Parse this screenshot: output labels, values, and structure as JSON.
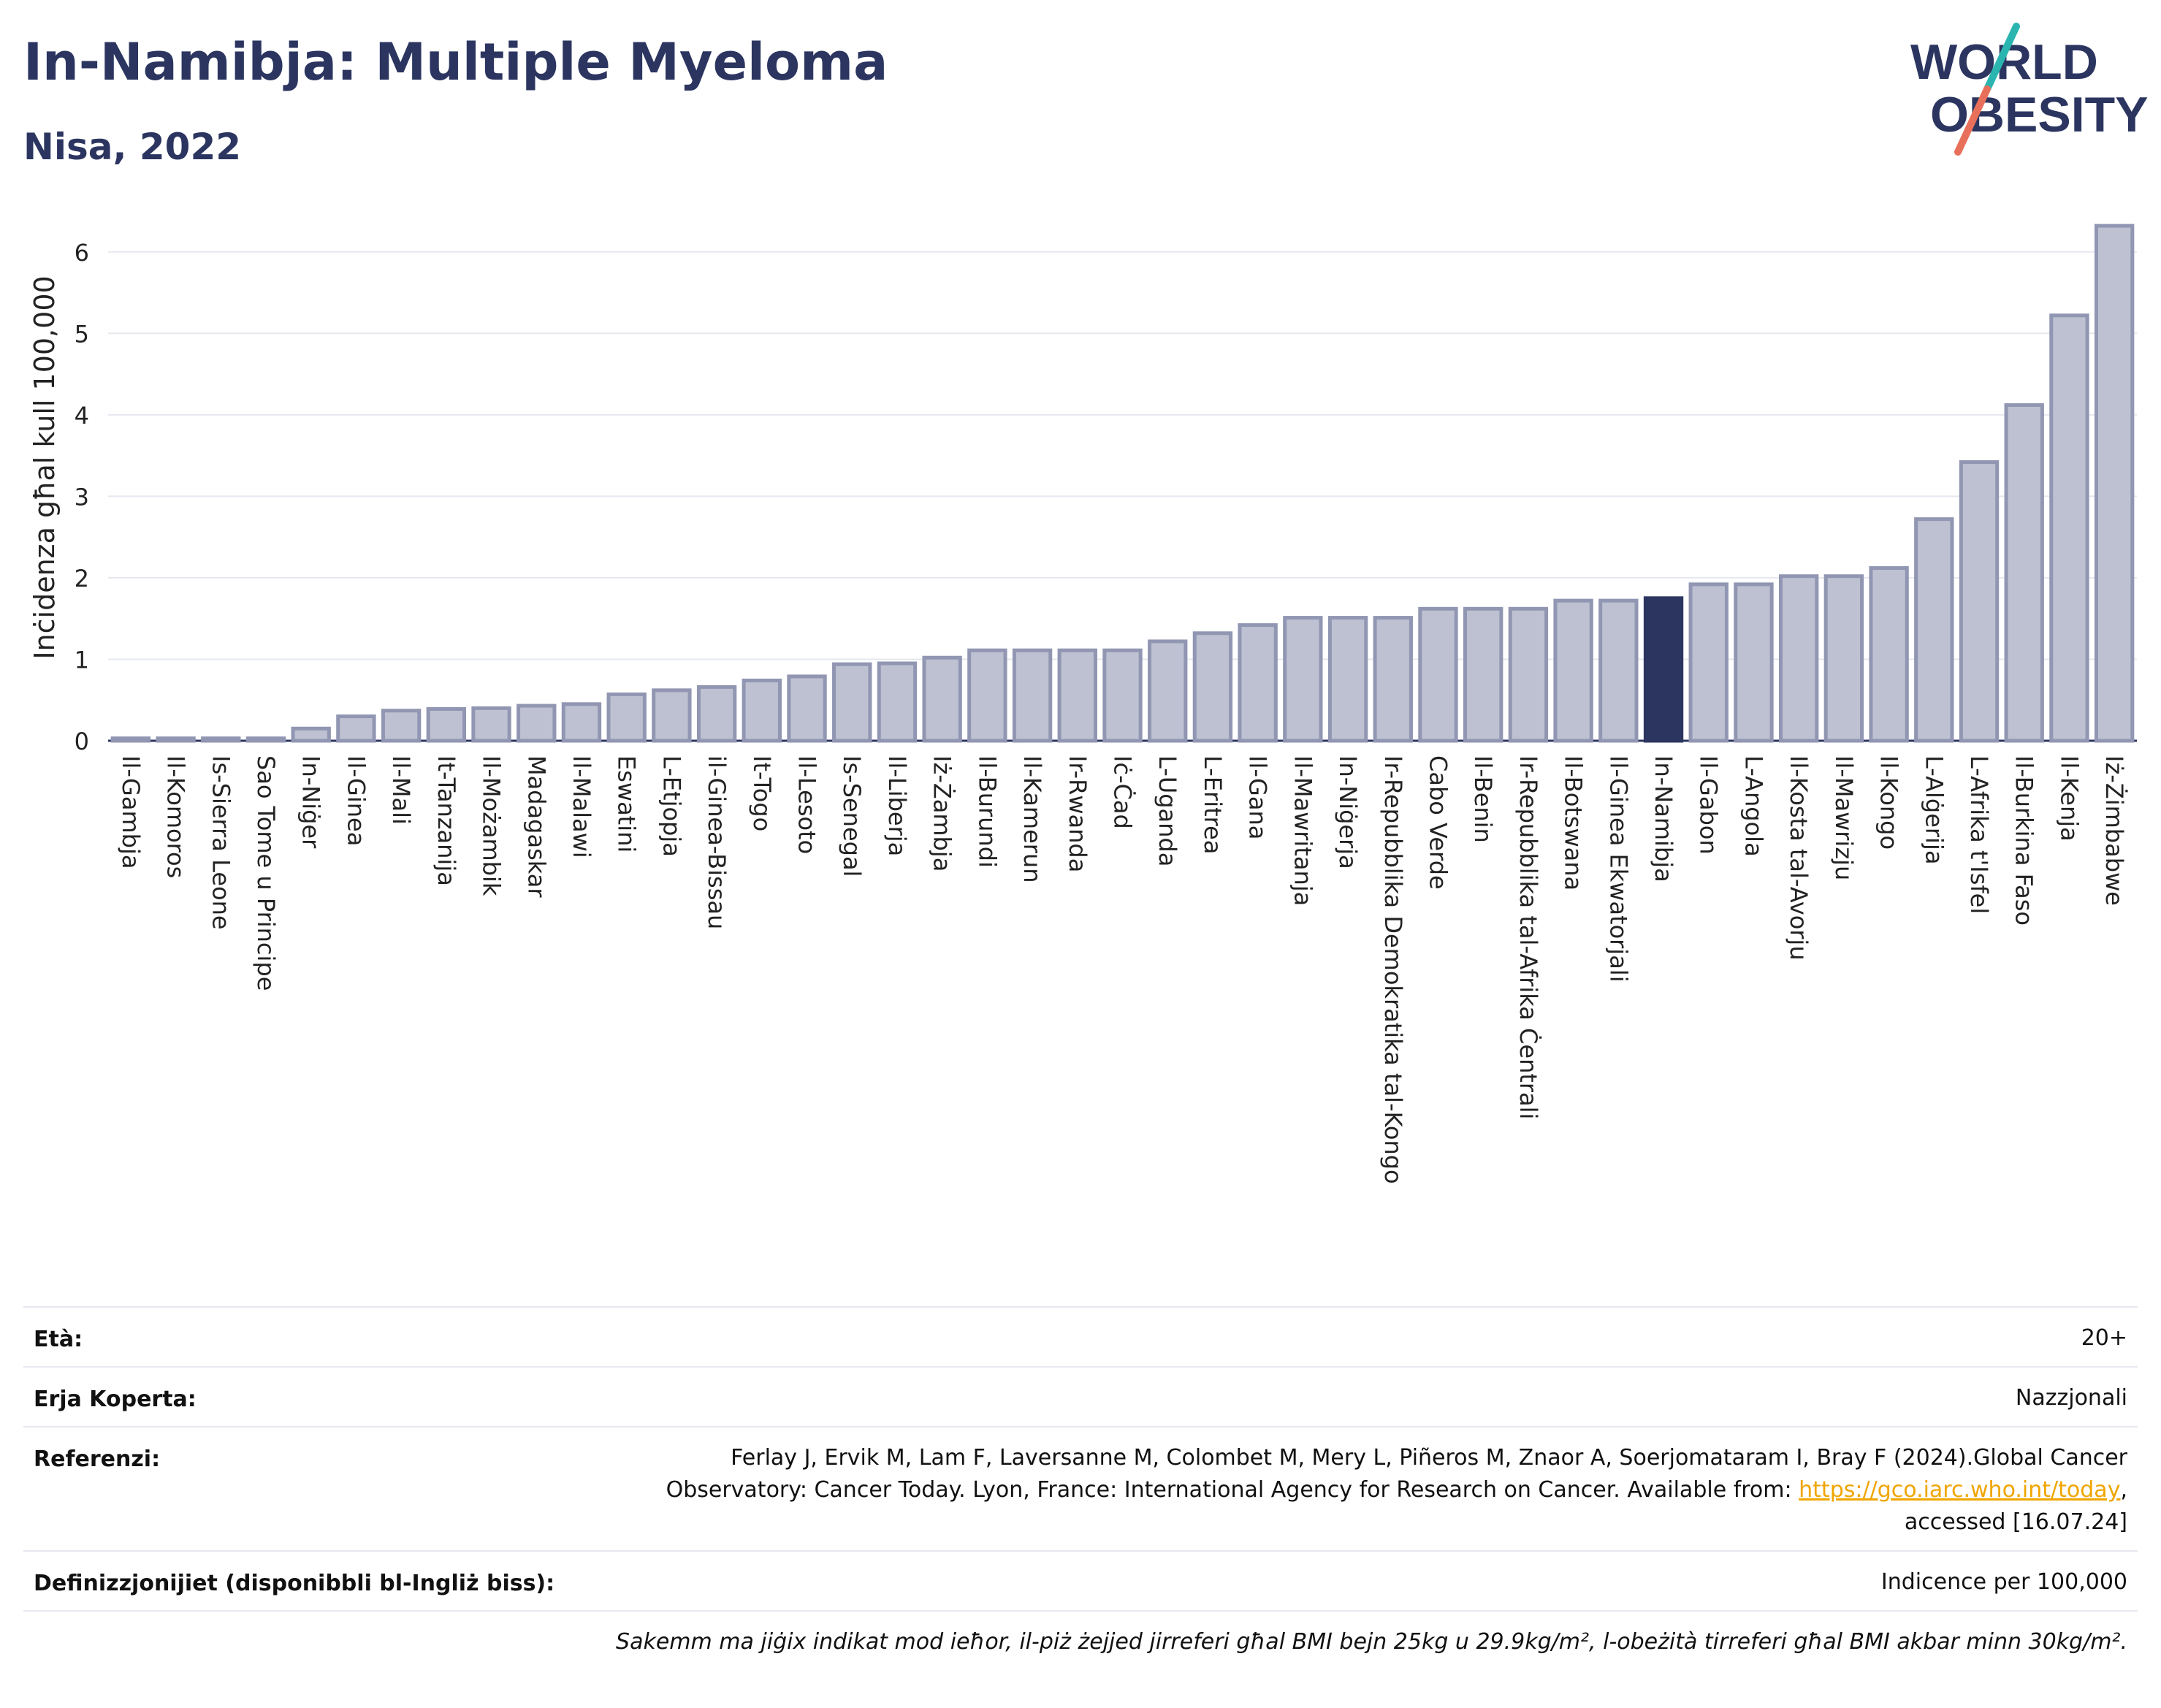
{
  "header": {
    "title": "In-Namibja: Multiple Myeloma",
    "subtitle": "Nisa, 2022"
  },
  "logo": {
    "line1": "WORLD",
    "line2": "OBESITY",
    "colors": {
      "text": "#2b3560",
      "slash_top": "#2bb5b0",
      "slash_bottom": "#e8705a"
    }
  },
  "colors": {
    "bar": "#bdc1d1",
    "bar_border": "#9196b2",
    "highlight": "#2b3560",
    "grid": "#e6e8ef",
    "axis_text": "#222222"
  },
  "chart_data": {
    "type": "bar",
    "ylabel": "Inċidenza għal kull 100,000",
    "ylim": [
      0,
      6.5
    ],
    "yticks": [
      0,
      1,
      2,
      3,
      4,
      5,
      6
    ],
    "grid": true,
    "highlight": "In-Namibja",
    "categories": [
      "Il-Gambja",
      "Il-Komoros",
      "Is-Sierra Leone",
      "Sao Tome u Principe",
      "In-Niġer",
      "Il-Ginea",
      "Il-Mali",
      "It-Tanzanija",
      "Il-Możambik",
      "Madagaskar",
      "Il-Malawi",
      "Eswatini",
      "L-Etjopja",
      "il-Ginea-Bissau",
      "It-Togo",
      "Il-Lesoto",
      "Is-Senegal",
      "Il-Liberja",
      "Iż-Żambja",
      "Il-Burundi",
      "Il-Kamerun",
      "Ir-Rwanda",
      "Iċ-Ċad",
      "L-Uganda",
      "L-Eritrea",
      "Il-Gana",
      "Il-Mawritanja",
      "In-Niġerja",
      "Ir-Repubblika Demokratika tal-Kongo",
      "Cabo Verde",
      "Il-Benin",
      "Ir-Repubblika tal-Afrika Ċentrali",
      "Il-Botswana",
      "Il-Ginea Ekwatorjali",
      "In-Namibja",
      "Il-Gabon",
      "L-Angola",
      "Il-Kosta tal-Avorju",
      "Il-Mawrizju",
      "Il-Kongo",
      "L-Alġerija",
      "L-Afrika t'Isfel",
      "Il-Burkina Faso",
      "Il-Kenja",
      "Iż-Żimbabwe"
    ],
    "values": [
      0.03,
      0.03,
      0.03,
      0.03,
      0.15,
      0.3,
      0.37,
      0.39,
      0.4,
      0.43,
      0.45,
      0.57,
      0.62,
      0.66,
      0.74,
      0.79,
      0.94,
      0.95,
      1.02,
      1.11,
      1.11,
      1.11,
      1.11,
      1.22,
      1.32,
      1.42,
      1.51,
      1.51,
      1.51,
      1.62,
      1.62,
      1.62,
      1.72,
      1.72,
      1.75,
      1.92,
      1.92,
      2.02,
      2.02,
      2.12,
      2.72,
      3.42,
      4.12,
      5.22,
      6.32
    ]
  },
  "meta": {
    "age_label": "Età:",
    "age_value": "20+",
    "coverage_label": "Erja Koperta:",
    "coverage_value": "Nazzjonali",
    "references_label": "Referenzi:",
    "references_line1": "Ferlay J, Ervik M, Lam F, Laversanne M, Colombet M, Mery L, Piñeros M, Znaor A, Soerjomataram I, Bray F (2024).Global Cancer",
    "references_line2_pre": "Observatory: Cancer Today. Lyon, France: International Agency for Research on Cancer. Available from: ",
    "references_link": "https://gco.iarc.who.int/today",
    "references_line2_post": ",",
    "references_line3": "accessed [16.07.24]",
    "definitions_label": "Definizzjonijiet (disponibbli bl-Ingliż biss):",
    "definitions_value": "Indicence per 100,000",
    "note": "Sakemm ma jiġix indikat mod ieħor, il-piż żejjed jirreferi għal BMI bejn 25kg u 29.9kg/m², l-obeżità tirreferi għal BMI akbar minn 30kg/m²."
  }
}
